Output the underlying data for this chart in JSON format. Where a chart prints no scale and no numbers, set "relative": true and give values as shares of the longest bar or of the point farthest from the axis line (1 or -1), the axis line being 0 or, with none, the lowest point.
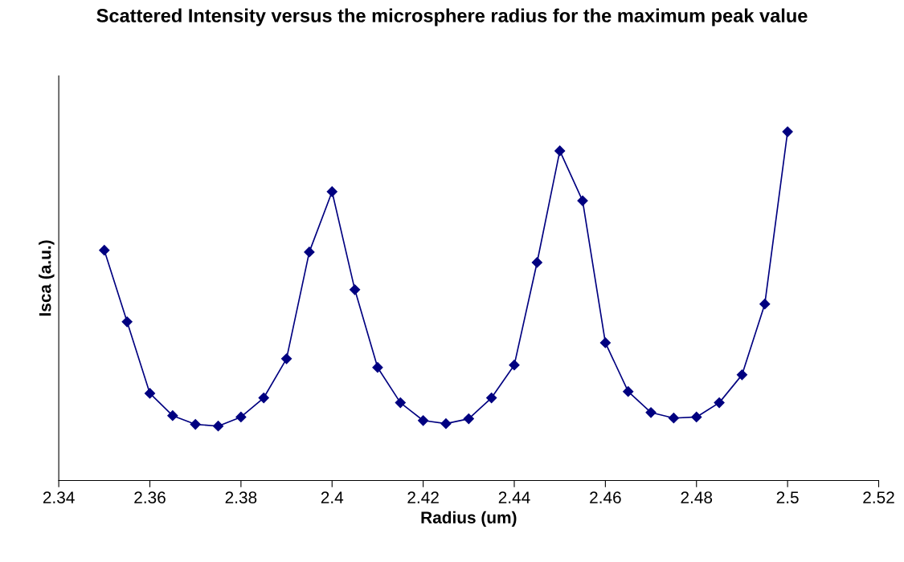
{
  "chart_data": {
    "type": "line",
    "title": "Scattered Intensity versus the microsphere radius for the maximum peak value",
    "xlabel": "Radius (um)",
    "ylabel": "Isca (a.u.)",
    "relative": true,
    "marker": "diamond",
    "line_style": "solid",
    "grid": false,
    "legend": false,
    "x": [
      2.35,
      2.355,
      2.36,
      2.365,
      2.37,
      2.375,
      2.38,
      2.385,
      2.39,
      2.395,
      2.4,
      2.405,
      2.41,
      2.415,
      2.42,
      2.425,
      2.43,
      2.435,
      2.44,
      2.445,
      2.45,
      2.455,
      2.46,
      2.465,
      2.47,
      2.475,
      2.48,
      2.485,
      2.49,
      2.495,
      2.5
    ],
    "series": [
      {
        "color": "#000080",
        "values": [
          0.66,
          0.455,
          0.25,
          0.186,
          0.161,
          0.156,
          0.182,
          0.237,
          0.349,
          0.655,
          0.828,
          0.547,
          0.324,
          0.223,
          0.172,
          0.163,
          0.177,
          0.237,
          0.331,
          0.625,
          0.945,
          0.802,
          0.395,
          0.255,
          0.195,
          0.179,
          0.182,
          0.223,
          0.303,
          0.506,
          1.0
        ]
      }
    ],
    "xlim": [
      2.34,
      2.52
    ],
    "xticks": [
      2.34,
      2.36,
      2.38,
      2.4,
      2.42,
      2.44,
      2.46,
      2.48,
      2.5,
      2.52
    ]
  }
}
